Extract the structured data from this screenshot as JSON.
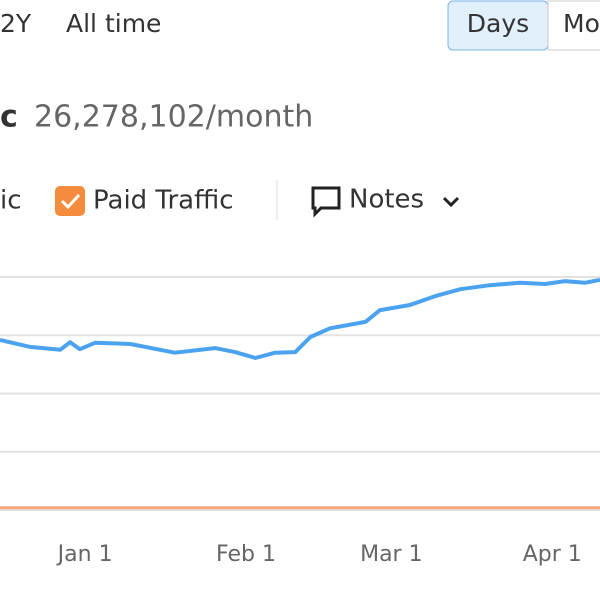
{
  "header": {
    "ranges": [
      "2Y",
      "All time"
    ],
    "granularity": [
      "Days",
      "Mo"
    ]
  },
  "summary": {
    "label": "c",
    "value": "26,278,102/month"
  },
  "notes": "Notes",
  "chart_data": {
    "type": "line",
    "x": [
      -16.4,
      -10.6,
      -4.8,
      -2.9,
      -1,
      1.9,
      8.7,
      17.3,
      25,
      28.9,
      32.8,
      36.6,
      40.5,
      43.4,
      47.2,
      54,
      56.8,
      62.6,
      67.4,
      72.3,
      78,
      83.8,
      88.6,
      92.5,
      96.3,
      99.2
    ],
    "series": [
      {
        "name": "ic",
        "color": "#4ba3f0",
        "values": [
          2.92,
          2.8,
          2.75,
          2.88,
          2.76,
          2.87,
          2.85,
          2.7,
          2.78,
          2.71,
          2.61,
          2.7,
          2.71,
          2.97,
          3.12,
          3.23,
          3.43,
          3.52,
          3.67,
          3.79,
          3.86,
          3.9,
          3.88,
          3.93,
          3.9,
          3.95
        ]
      },
      {
        "name": "Paid Traffic",
        "color": "#f4a57a",
        "values": [
          0.04,
          0.04,
          0.04,
          0.04,
          0.04,
          0.04,
          0.04,
          0.04,
          0.04,
          0.04,
          0.04,
          0.04,
          0.04,
          0.04,
          0.04,
          0.04,
          0.04,
          0.04,
          0.04,
          0.04,
          0.04,
          0.04,
          0.04,
          0.04,
          0.04,
          0.04
        ]
      }
    ],
    "xlim": [
      -16.4,
      99.2
    ],
    "xticks": [
      {
        "value": 0,
        "label": "Jan 1"
      },
      {
        "value": 31,
        "label": "Feb 1"
      },
      {
        "value": 59,
        "label": "Mar 1"
      },
      {
        "value": 90,
        "label": "Apr 1"
      }
    ],
    "ylim": [
      0,
      4
    ],
    "yticks": [
      0,
      1,
      2,
      3,
      4
    ],
    "grid": true
  }
}
